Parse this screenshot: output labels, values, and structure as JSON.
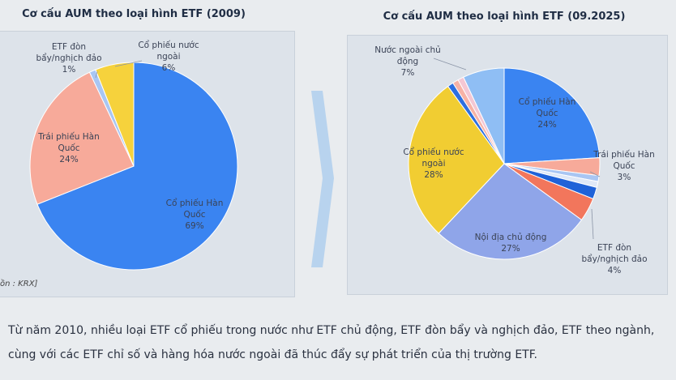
{
  "chart_data": [
    {
      "type": "pie",
      "title": "Cơ cấu AUM theo loại hình ETF (2009)",
      "categories": [
        "Cổ phiếu Hàn Quốc",
        "Trái phiếu Hàn Quốc",
        "ETF đòn bẩy/nghịch đảo",
        "Cổ phiếu nước ngoài"
      ],
      "values": [
        69,
        24,
        1,
        6
      ],
      "value_labels": [
        "69%",
        "24%",
        "1%",
        "6%"
      ],
      "colors": [
        "#3a84f1",
        "#f7aa9a",
        "#a9c6f3",
        "#f6d23c"
      ]
    },
    {
      "type": "pie",
      "title": "Cơ cấu AUM theo loại hình ETF (09.2025)",
      "categories": [
        "Cổ phiếu Hàn Quốc",
        "Trái phiếu Hàn Quốc",
        null,
        null,
        null,
        "ETF đòn bẩy/nghịch đảo",
        "Nội địa chủ động",
        "Cổ phiếu nước ngoài",
        null,
        null,
        null,
        "Nước ngoài chủ động"
      ],
      "values": [
        24,
        3,
        1,
        1,
        2,
        4,
        27,
        28,
        1,
        1,
        1,
        7
      ],
      "value_labels": [
        "24%",
        "3%",
        null,
        null,
        null,
        "4%",
        "27%",
        "28%",
        null,
        null,
        null,
        "7%"
      ],
      "colors": [
        "#3a84f1",
        "#f7aa9a",
        "#a9c6f3",
        "#dfe8f7",
        "#1f62d8",
        "#f2765c",
        "#8fa5e9",
        "#f1cd32",
        "#2d6fe0",
        "#f7b2a6",
        "#f4c7d3",
        "#8fbef4"
      ]
    }
  ],
  "source": "ồn : KRX]",
  "body": [
    "Từ năm 2010, nhiều loại ETF cổ phiếu trong nước như ETF chủ động, ETF đòn bẩy và nghịch đảo, ETF theo ngành,",
    "cùng với các ETF chỉ số và hàng hóa nước ngoài đã thúc đẩy sự phát triển của thị trường ETF."
  ]
}
